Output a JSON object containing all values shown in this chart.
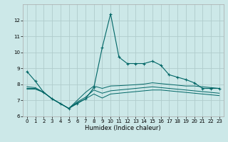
{
  "title": "",
  "xlabel": "Humidex (Indice chaleur)",
  "background_color": "#cce8e8",
  "grid_color": "#b0cccc",
  "line_color": "#006666",
  "xlim": [
    -0.5,
    23.5
  ],
  "ylim": [
    6,
    13
  ],
  "yticks": [
    6,
    7,
    8,
    9,
    10,
    11,
    12
  ],
  "xticks": [
    0,
    1,
    2,
    3,
    4,
    5,
    6,
    7,
    8,
    9,
    10,
    11,
    12,
    13,
    14,
    15,
    16,
    17,
    18,
    19,
    20,
    21,
    22,
    23
  ],
  "line1_x": [
    0,
    1,
    2,
    3,
    4,
    5,
    6,
    7,
    8,
    9,
    10,
    11,
    12,
    13,
    14,
    15,
    16,
    17,
    18,
    19,
    20,
    21,
    22,
    23
  ],
  "line1_y": [
    8.8,
    8.2,
    7.5,
    7.1,
    6.8,
    6.5,
    6.8,
    7.1,
    7.8,
    10.3,
    12.4,
    9.7,
    9.3,
    9.3,
    9.3,
    9.45,
    9.2,
    8.6,
    8.45,
    8.3,
    8.1,
    7.75,
    7.75,
    7.75
  ],
  "line2_x": [
    0,
    1,
    2,
    3,
    4,
    5,
    6,
    7,
    8,
    9,
    10,
    11,
    12,
    13,
    14,
    15,
    16,
    17,
    18,
    19,
    20,
    21,
    22,
    23
  ],
  "line2_y": [
    7.85,
    7.8,
    7.5,
    7.1,
    6.8,
    6.5,
    7.0,
    7.5,
    7.9,
    7.75,
    7.9,
    7.92,
    7.95,
    7.98,
    8.02,
    8.1,
    8.05,
    8.0,
    7.95,
    7.9,
    7.9,
    7.85,
    7.8,
    7.75
  ],
  "line3_x": [
    0,
    1,
    2,
    3,
    4,
    5,
    6,
    7,
    8,
    9,
    10,
    11,
    12,
    13,
    14,
    15,
    16,
    17,
    18,
    19,
    20,
    21,
    22,
    23
  ],
  "line3_y": [
    7.75,
    7.75,
    7.5,
    7.1,
    6.8,
    6.5,
    6.9,
    7.2,
    7.65,
    7.45,
    7.6,
    7.65,
    7.7,
    7.75,
    7.8,
    7.85,
    7.8,
    7.75,
    7.7,
    7.65,
    7.6,
    7.55,
    7.5,
    7.45
  ],
  "line4_x": [
    0,
    1,
    2,
    3,
    4,
    5,
    6,
    7,
    8,
    9,
    10,
    11,
    12,
    13,
    14,
    15,
    16,
    17,
    18,
    19,
    20,
    21,
    22,
    23
  ],
  "line4_y": [
    7.7,
    7.7,
    7.5,
    7.1,
    6.8,
    6.5,
    6.85,
    7.1,
    7.4,
    7.15,
    7.4,
    7.45,
    7.5,
    7.55,
    7.6,
    7.65,
    7.65,
    7.6,
    7.55,
    7.5,
    7.45,
    7.4,
    7.35,
    7.3
  ]
}
